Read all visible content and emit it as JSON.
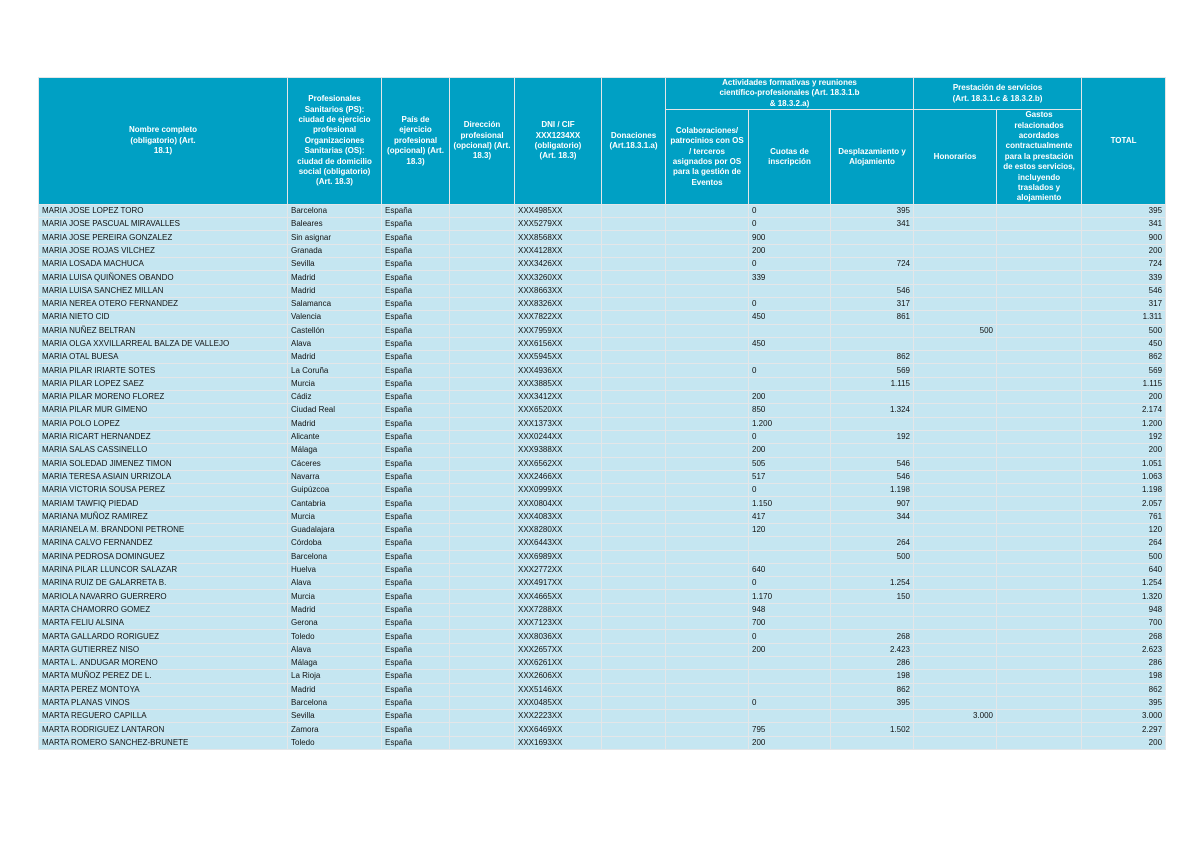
{
  "headers": {
    "name": "Nombre completo (obligatorio) (Art. 18.1)",
    "city": "Profesionales Sanitarios (PS): ciudad de ejercicio profesional Organizaciones Sanitarias (OS): ciudad de domicilio social (obligatorio) (Art. 18.3)",
    "country": "País de ejercicio profesional (opcional) (Art. 18.3)",
    "address": "Dirección profesional (opcional) (Art. 18.3)",
    "dni": "DNI / CIF XXX1234XX (obligatorio) (Art. 18.3)",
    "donations": "Donaciones (Art.18.3.1.a)",
    "group_training": "Actividades formativas y reuniones científico-profesionales (Art. 18.3.1.b & 18.3.2.a)",
    "collaborations": "Colaboraciones/ patrocinios con OS / terceros asignados por OS para la gestión de Eventos",
    "fees": "Cuotas de inscripción",
    "travel": "Desplazamiento y Alojamiento",
    "group_services": "Prestación de servicios (Art. 18.3.1.c & 18.3.2.b)",
    "honoraria": "Honorarios",
    "expenses": "Gastos relacionados acordados contractualmente para la prestación de estos servicios, incluyendo traslados y alojamiento",
    "total": "TOTAL"
  },
  "rows": [
    [
      "MARIA JOSE LOPEZ TORO",
      "Barcelona",
      "España",
      "",
      "XXX4985XX",
      "",
      "",
      "0",
      "395",
      "",
      "",
      "395"
    ],
    [
      "MARIA JOSE PASCUAL MIRAVALLES",
      "Baleares",
      "España",
      "",
      "XXX5279XX",
      "",
      "",
      "0",
      "341",
      "",
      "",
      "341"
    ],
    [
      "MARIA JOSE PEREIRA GONZALEZ",
      "Sin asignar",
      "España",
      "",
      "XXX8568XX",
      "",
      "",
      "900",
      "",
      "",
      "",
      "900"
    ],
    [
      "MARIA JOSE ROJAS VILCHEZ",
      "Granada",
      "España",
      "",
      "XXX4128XX",
      "",
      "",
      "200",
      "",
      "",
      "",
      "200"
    ],
    [
      "MARIA LOSADA MACHUCA",
      "Sevilla",
      "España",
      "",
      "XXX3426XX",
      "",
      "",
      "0",
      "724",
      "",
      "",
      "724"
    ],
    [
      "MARIA LUISA QUIÑONES OBANDO",
      "Madrid",
      "España",
      "",
      "XXX3260XX",
      "",
      "",
      "339",
      "",
      "",
      "",
      "339"
    ],
    [
      "MARIA LUISA SANCHEZ MILLAN",
      "Madrid",
      "España",
      "",
      "XXX8663XX",
      "",
      "",
      "",
      "546",
      "",
      "",
      "546"
    ],
    [
      "MARIA NEREA OTERO FERNANDEZ",
      "Salamanca",
      "España",
      "",
      "XXX8326XX",
      "",
      "",
      "0",
      "317",
      "",
      "",
      "317"
    ],
    [
      "MARIA NIETO CID",
      "Valencia",
      "España",
      "",
      "XXX7822XX",
      "",
      "",
      "450",
      "861",
      "",
      "",
      "1.311"
    ],
    [
      "MARIA NUÑEZ BELTRAN",
      "Castellón",
      "España",
      "",
      "XXX7959XX",
      "",
      "",
      "",
      "",
      "500",
      "",
      "500"
    ],
    [
      "MARIA OLGA XXVILLARREAL BALZA DE VALLEJO",
      "Alava",
      "España",
      "",
      "XXX6156XX",
      "",
      "",
      "450",
      "",
      "",
      "",
      "450"
    ],
    [
      "MARIA OTAL BUESA",
      "Madrid",
      "España",
      "",
      "XXX5945XX",
      "",
      "",
      "",
      "862",
      "",
      "",
      "862"
    ],
    [
      "MARIA PILAR IRIARTE SOTES",
      "La Coruña",
      "España",
      "",
      "XXX4936XX",
      "",
      "",
      "0",
      "569",
      "",
      "",
      "569"
    ],
    [
      "MARIA PILAR LOPEZ SAEZ",
      "Murcia",
      "España",
      "",
      "XXX3885XX",
      "",
      "",
      "",
      "1.115",
      "",
      "",
      "1.115"
    ],
    [
      "MARIA PILAR MORENO FLOREZ",
      "Cádiz",
      "España",
      "",
      "XXX3412XX",
      "",
      "",
      "200",
      "",
      "",
      "",
      "200"
    ],
    [
      "MARIA PILAR MUR GIMENO",
      "Ciudad Real",
      "España",
      "",
      "XXX6520XX",
      "",
      "",
      "850",
      "1.324",
      "",
      "",
      "2.174"
    ],
    [
      "MARIA POLO LOPEZ",
      "Madrid",
      "España",
      "",
      "XXX1373XX",
      "",
      "",
      "1.200",
      "",
      "",
      "",
      "1.200"
    ],
    [
      "MARIA RICART HERNANDEZ",
      "Alicante",
      "España",
      "",
      "XXX0244XX",
      "",
      "",
      "0",
      "192",
      "",
      "",
      "192"
    ],
    [
      "MARIA SALAS CASSINELLO",
      "Málaga",
      "España",
      "",
      "XXX9388XX",
      "",
      "",
      "200",
      "",
      "",
      "",
      "200"
    ],
    [
      "MARIA SOLEDAD JIMENEZ TIMON",
      "Cáceres",
      "España",
      "",
      "XXX6562XX",
      "",
      "",
      "505",
      "546",
      "",
      "",
      "1.051"
    ],
    [
      "MARIA TERESA ASIAIN URRIZOLA",
      "Navarra",
      "España",
      "",
      "XXX2466XX",
      "",
      "",
      "517",
      "546",
      "",
      "",
      "1.063"
    ],
    [
      "MARIA VICTORIA SOUSA PEREZ",
      "Guipúzcoa",
      "España",
      "",
      "XXX0999XX",
      "",
      "",
      "0",
      "1.198",
      "",
      "",
      "1.198"
    ],
    [
      "MARIAM TAWFIQ PIEDAD",
      "Cantabria",
      "España",
      "",
      "XXX0804XX",
      "",
      "",
      "1.150",
      "907",
      "",
      "",
      "2.057"
    ],
    [
      "MARIANA MUÑOZ RAMIREZ",
      "Murcia",
      "España",
      "",
      "XXX4083XX",
      "",
      "",
      "417",
      "344",
      "",
      "",
      "761"
    ],
    [
      "MARIANELA M. BRANDONI PETRONE",
      "Guadalajara",
      "España",
      "",
      "XXX8280XX",
      "",
      "",
      "120",
      "",
      "",
      "",
      "120"
    ],
    [
      "MARINA CALVO FERNANDEZ",
      "Córdoba",
      "España",
      "",
      "XXX6443XX",
      "",
      "",
      "",
      "264",
      "",
      "",
      "264"
    ],
    [
      "MARINA PEDROSA DOMINGUEZ",
      "Barcelona",
      "España",
      "",
      "XXX6989XX",
      "",
      "",
      "",
      "500",
      "",
      "",
      "500"
    ],
    [
      "MARINA PILAR LLUNCOR SALAZAR",
      "Huelva",
      "España",
      "",
      "XXX2772XX",
      "",
      "",
      "640",
      "",
      "",
      "",
      "640"
    ],
    [
      "MARINA RUIZ DE GALARRETA B.",
      "Alava",
      "España",
      "",
      "XXX4917XX",
      "",
      "",
      "0",
      "1.254",
      "",
      "",
      "1.254"
    ],
    [
      "MARIOLA NAVARRO GUERRERO",
      "Murcia",
      "España",
      "",
      "XXX4665XX",
      "",
      "",
      "1.170",
      "150",
      "",
      "",
      "1.320"
    ],
    [
      "MARTA CHAMORRO GOMEZ",
      "Madrid",
      "España",
      "",
      "XXX7288XX",
      "",
      "",
      "948",
      "",
      "",
      "",
      "948"
    ],
    [
      "MARTA FELIU ALSINA",
      "Gerona",
      "España",
      "",
      "XXX7123XX",
      "",
      "",
      "700",
      "",
      "",
      "",
      "700"
    ],
    [
      "MARTA GALLARDO RORIGUEZ",
      "Toledo",
      "España",
      "",
      "XXX8036XX",
      "",
      "",
      "0",
      "268",
      "",
      "",
      "268"
    ],
    [
      "MARTA GUTIERREZ NISO",
      "Alava",
      "España",
      "",
      "XXX2657XX",
      "",
      "",
      "200",
      "2.423",
      "",
      "",
      "2.623"
    ],
    [
      "MARTA L. ANDUGAR MORENO",
      "Málaga",
      "España",
      "",
      "XXX6261XX",
      "",
      "",
      "",
      "286",
      "",
      "",
      "286"
    ],
    [
      "MARTA MUÑOZ PEREZ DE L.",
      "La Rioja",
      "España",
      "",
      "XXX2606XX",
      "",
      "",
      "",
      "198",
      "",
      "",
      "198"
    ],
    [
      "MARTA PEREZ MONTOYA",
      "Madrid",
      "España",
      "",
      "XXX5146XX",
      "",
      "",
      "",
      "862",
      "",
      "",
      "862"
    ],
    [
      "MARTA PLANAS VINOS",
      "Barcelona",
      "España",
      "",
      "XXX0485XX",
      "",
      "",
      "0",
      "395",
      "",
      "",
      "395"
    ],
    [
      "MARTA REGUERO CAPILLA",
      "Sevilla",
      "España",
      "",
      "XXX2223XX",
      "",
      "",
      "",
      "",
      "3.000",
      "",
      "3.000"
    ],
    [
      "MARTA RODRIGUEZ LANTARON",
      "Zamora",
      "España",
      "",
      "XXX6469XX",
      "",
      "",
      "795",
      "1.502",
      "",
      "",
      "2.297"
    ],
    [
      "MARTA ROMERO SANCHEZ-BRUNETE",
      "Toledo",
      "España",
      "",
      "XXX1693XX",
      "",
      "",
      "200",
      "",
      "",
      "",
      "200"
    ]
  ]
}
